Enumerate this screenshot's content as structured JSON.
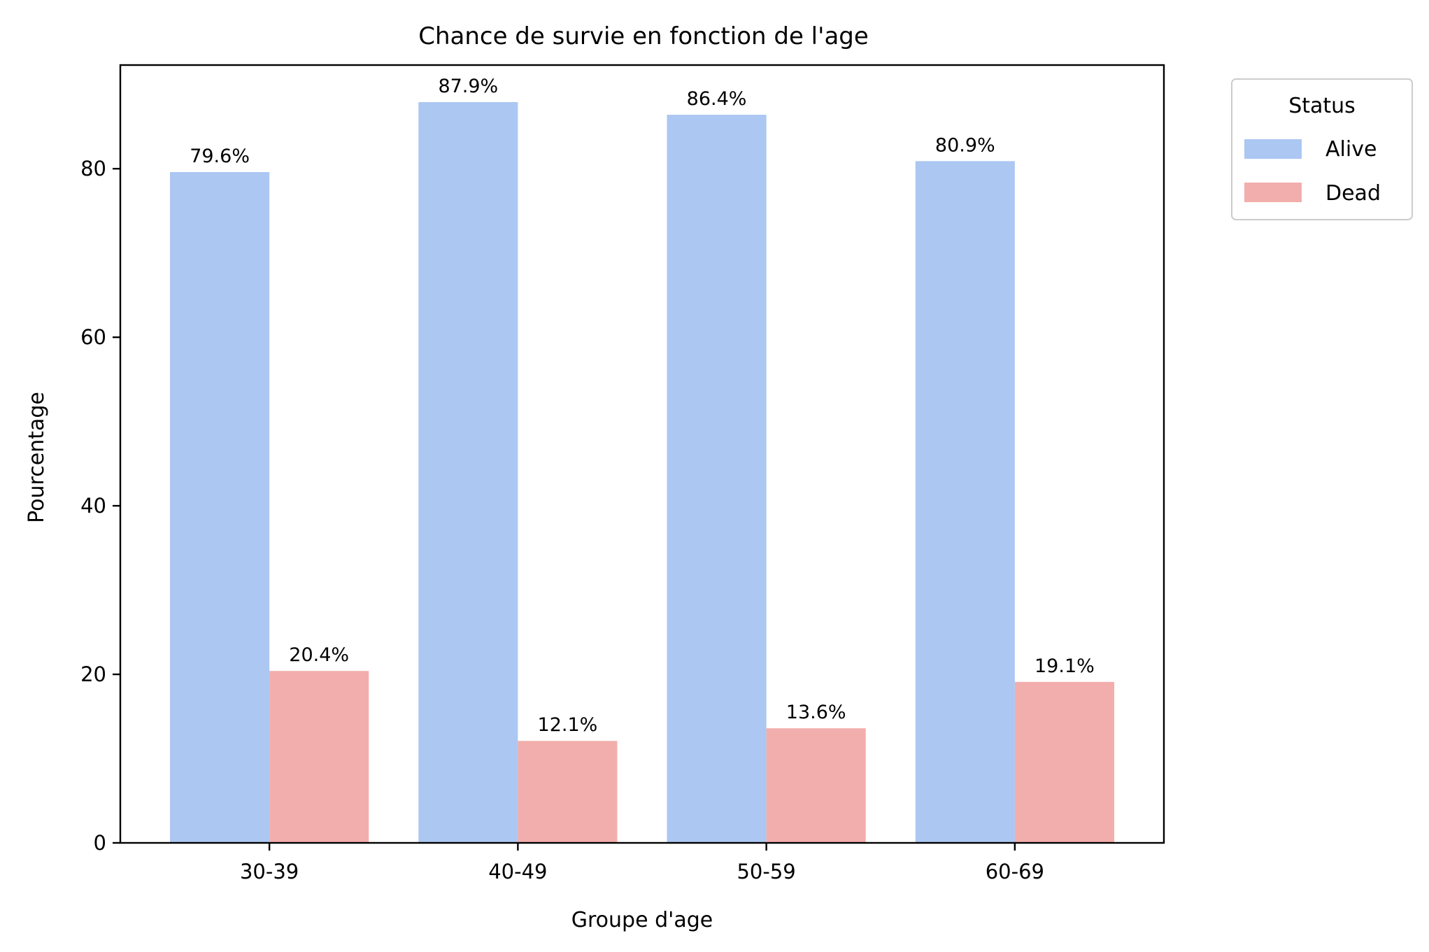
{
  "chart_data": {
    "type": "bar",
    "title": "Chance de survie en fonction de l'age",
    "xlabel": "Groupe d'age",
    "ylabel": "Pourcentage",
    "categories": [
      "30-39",
      "40-49",
      "50-59",
      "60-69"
    ],
    "series": [
      {
        "name": "Alive",
        "color": "#abc7f2",
        "values": [
          79.6,
          87.9,
          86.4,
          80.9
        ],
        "labels": [
          "79.6%",
          "87.9%",
          "86.4%",
          "80.9%"
        ]
      },
      {
        "name": "Dead",
        "color": "#f2aeac",
        "values": [
          20.4,
          12.1,
          13.6,
          19.1
        ],
        "labels": [
          "20.4%",
          "12.1%",
          "13.6%",
          "19.1%"
        ]
      }
    ],
    "ylim": [
      0,
      92.3
    ],
    "yticks": [
      0,
      20,
      40,
      60,
      80
    ],
    "ytick_labels": [
      "0",
      "20",
      "40",
      "60",
      "80"
    ],
    "grid": false,
    "legend": {
      "title": "Status",
      "placement": "outside-top-right"
    }
  }
}
